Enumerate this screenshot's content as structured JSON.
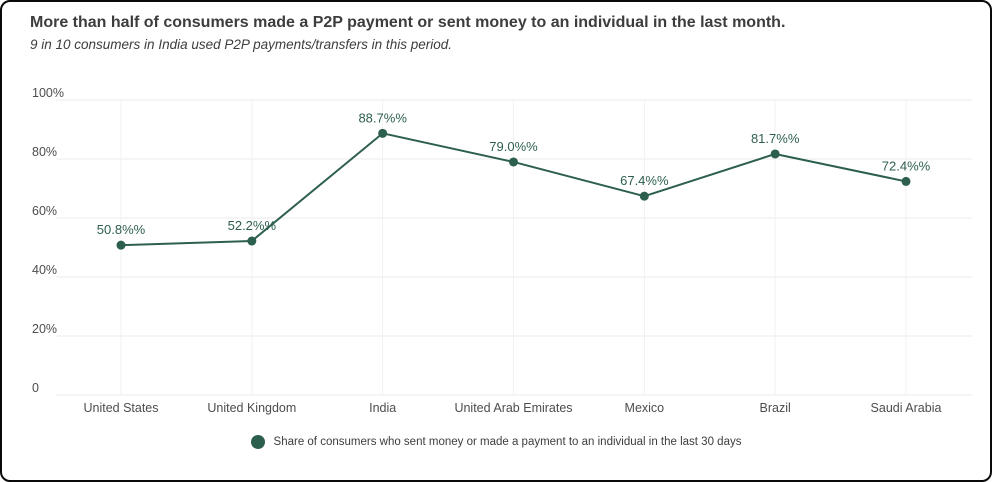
{
  "colors": {
    "accent": "#2d5f4e",
    "title_text": "#3d3d3d",
    "axis_text": "#4d4d4d",
    "grid_h": "#ebebeb",
    "grid_v": "#f3f1f1",
    "card_border": "#000000",
    "background": "#ffffff"
  },
  "legend": {
    "marker": "filled-circle"
  },
  "chart_data": {
    "type": "line",
    "title": "More than half of consumers made a P2P payment or sent money to an individual in the last month.",
    "subtitle": "9 in 10 consumers in India used P2P payments/transfers in this period.",
    "categories": [
      "United States",
      "United Kingdom",
      "India",
      "United Arab Emirates",
      "Mexico",
      "Brazil",
      "Saudi Arabia"
    ],
    "series": [
      {
        "name": "Share of consumers who sent money or made a payment to an individual in the last 30 days",
        "values": [
          50.8,
          52.2,
          88.7,
          79.0,
          67.4,
          81.7,
          72.4
        ],
        "point_labels": [
          "50.8%%",
          "52.2%%",
          "88.7%%",
          "79.0%%",
          "67.4%%",
          "81.7%%",
          "72.4%%"
        ]
      }
    ],
    "xlabel": "",
    "ylabel": "",
    "y_ticks": [
      {
        "label": "100%",
        "value": 100
      },
      {
        "label": "80%",
        "value": 80
      },
      {
        "label": "60%",
        "value": 60
      },
      {
        "label": "40%",
        "value": 40
      },
      {
        "label": "20%",
        "value": 20
      },
      {
        "label": "0",
        "value": 0
      }
    ],
    "ylim": [
      0,
      100
    ],
    "grid": true,
    "legend_position": "bottom",
    "marker": "circle"
  }
}
